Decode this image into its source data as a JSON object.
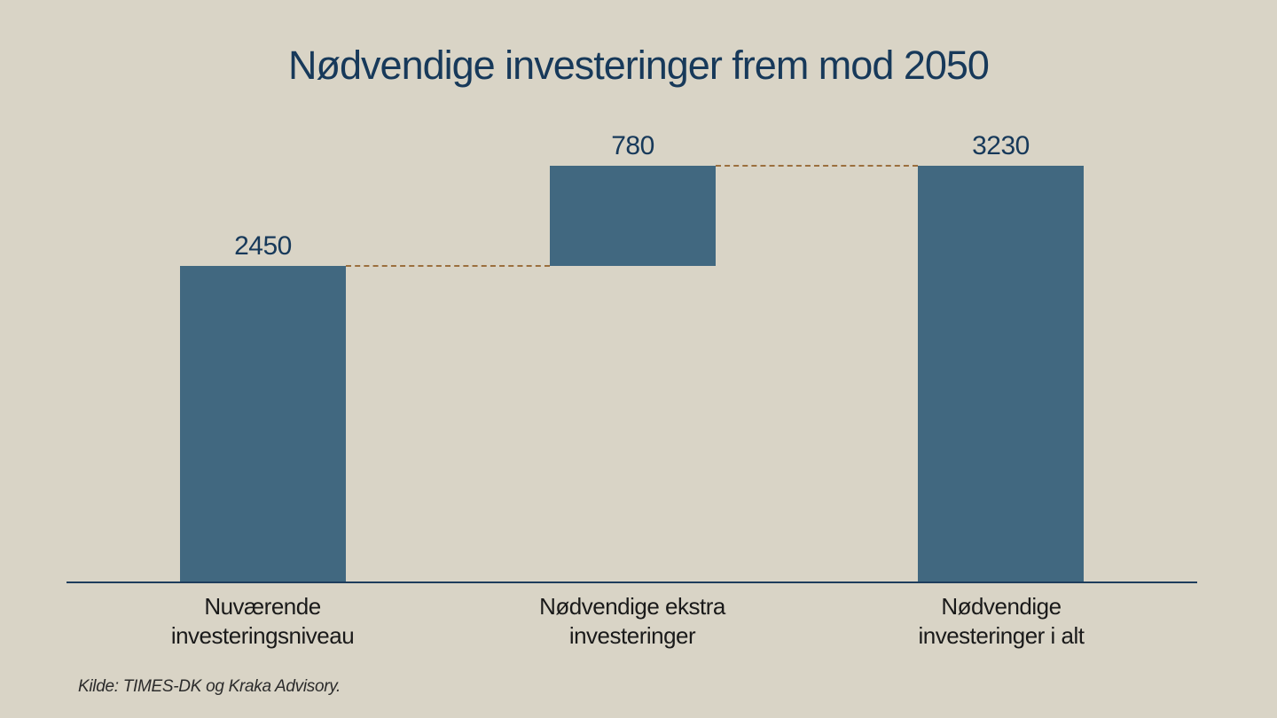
{
  "title": "Nødvendige investeringer frem mod 2050",
  "bars": [
    {
      "value": "2450",
      "label_line1": "Nuværende",
      "label_line2": "investeringsniveau"
    },
    {
      "value": "780",
      "label_line1": "Nødvendige ekstra",
      "label_line2": "investeringer"
    },
    {
      "value": "3230",
      "label_line1": "Nødvendige",
      "label_line2": "investeringer i alt"
    }
  ],
  "source_note": "Kilde: TIMES-DK og Kraka Advisory.",
  "colors": {
    "background": "#d9d4c6",
    "bar": "#416880",
    "title_text": "#17395a",
    "value_text": "#17395a",
    "category_text": "#1a1a1a",
    "connector": "#9b6f3e",
    "axis": "#1e3d5c"
  },
  "chart_data": {
    "type": "bar",
    "subtype": "waterfall",
    "title": "Nødvendige investeringer frem mod 2050",
    "categories": [
      "Nuværende investeringsniveau",
      "Nødvendige ekstra investeringer",
      "Nødvendige investeringer i alt"
    ],
    "values": [
      2450,
      780,
      3230
    ],
    "bar_segments": [
      {
        "start": 0,
        "end": 2450
      },
      {
        "start": 2450,
        "end": 3230
      },
      {
        "start": 0,
        "end": 3230
      }
    ],
    "value_labels": [
      "2450",
      "780",
      "3230"
    ],
    "xlabel": "",
    "ylabel": "",
    "ylim": [
      0,
      3230
    ],
    "grid": false,
    "legend": false,
    "y_axis_ticks_visible": false,
    "connectors": [
      {
        "from_bar": 0,
        "to_bar": 1,
        "level": 2450
      },
      {
        "from_bar": 1,
        "to_bar": 2,
        "level": 3230
      }
    ],
    "source": "Kilde: TIMES-DK og Kraka Advisory."
  }
}
